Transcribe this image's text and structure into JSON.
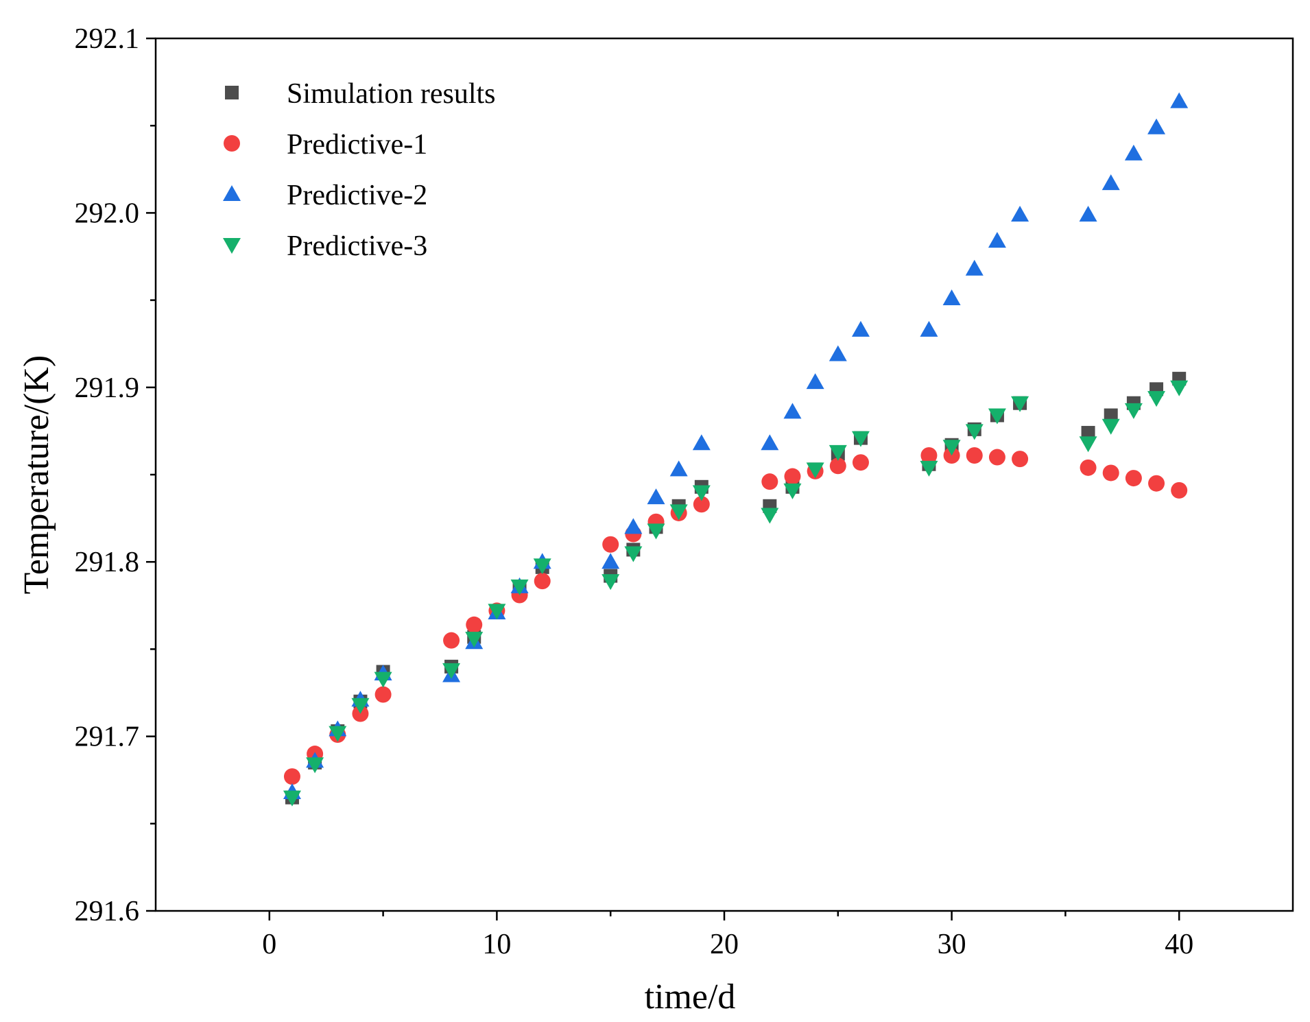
{
  "chart_data": {
    "type": "scatter",
    "title": "",
    "xlabel": "time/d",
    "ylabel": "Temperature/(K)",
    "xlim": [
      -5,
      45
    ],
    "ylim": [
      291.6,
      292.1
    ],
    "xticks": [
      0,
      10,
      20,
      30,
      40
    ],
    "xtick_labels": [
      "0",
      "10",
      "20",
      "30",
      "40"
    ],
    "xminor": [
      5,
      15,
      25,
      35
    ],
    "yticks": [
      291.6,
      291.7,
      291.8,
      291.9,
      292.0,
      292.1
    ],
    "ytick_labels": [
      "291.6",
      "291.7",
      "291.8",
      "291.9",
      "292.0",
      "292.1"
    ],
    "yminor": [
      291.65,
      291.75,
      291.85,
      291.95,
      292.05
    ],
    "grid": false,
    "legend_position": "top-left",
    "x": [
      1,
      2,
      3,
      4,
      5,
      8,
      9,
      10,
      11,
      12,
      15,
      16,
      17,
      18,
      19,
      22,
      23,
      24,
      25,
      26,
      29,
      30,
      31,
      32,
      33,
      36,
      37,
      38,
      39,
      40
    ],
    "series": [
      {
        "name": "Simulation results",
        "marker": "square",
        "color": "#4d4d4d",
        "values": [
          291.665,
          291.685,
          291.703,
          291.72,
          291.737,
          291.74,
          291.757,
          291.771,
          291.784,
          291.797,
          291.792,
          291.807,
          291.82,
          291.832,
          291.843,
          291.832,
          291.843,
          291.853,
          291.862,
          291.871,
          291.856,
          291.867,
          291.876,
          291.884,
          291.891,
          291.874,
          291.884,
          291.891,
          291.899,
          291.905
        ]
      },
      {
        "name": "Predictive-1",
        "marker": "circle",
        "color": "#f24040",
        "values": [
          291.677,
          291.69,
          291.701,
          291.713,
          291.724,
          291.755,
          291.764,
          291.772,
          291.781,
          291.789,
          291.81,
          291.816,
          291.823,
          291.828,
          291.833,
          291.846,
          291.849,
          291.852,
          291.855,
          291.857,
          291.861,
          291.861,
          291.861,
          291.86,
          291.859,
          291.854,
          291.851,
          291.848,
          291.845,
          291.841
        ]
      },
      {
        "name": "Predictive-2",
        "marker": "triangle-up",
        "color": "#1f6fe0",
        "values": [
          291.668,
          291.686,
          291.704,
          291.721,
          291.736,
          291.735,
          291.754,
          291.771,
          291.786,
          291.8,
          291.8,
          291.82,
          291.837,
          291.853,
          291.868,
          291.868,
          291.886,
          291.903,
          291.919,
          291.933,
          291.933,
          291.951,
          291.968,
          291.984,
          291.999,
          291.999,
          292.017,
          292.034,
          292.049,
          292.064
        ]
      },
      {
        "name": "Predictive-3",
        "marker": "triangle-down",
        "color": "#15b06b",
        "values": [
          291.665,
          291.684,
          291.702,
          291.718,
          291.733,
          291.738,
          291.756,
          291.772,
          291.786,
          291.798,
          291.789,
          291.805,
          291.818,
          291.829,
          291.84,
          291.827,
          291.841,
          291.853,
          291.863,
          291.871,
          291.854,
          291.866,
          291.875,
          291.884,
          291.891,
          291.868,
          291.878,
          291.887,
          291.894,
          291.9
        ]
      }
    ]
  }
}
